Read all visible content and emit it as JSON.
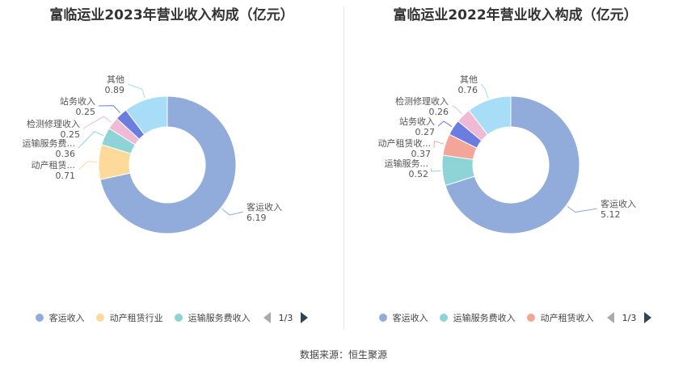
{
  "chart_data": [
    {
      "type": "pie",
      "title": "富临运业2023年营业收入构成（亿元）",
      "slices": [
        {
          "name": "客运收入",
          "label": "客运收入",
          "value": 6.19,
          "color": "#91acdb"
        },
        {
          "name": "动产租赁行业",
          "label": "动产租赁...",
          "value": 0.71,
          "color": "#fdd99a"
        },
        {
          "name": "运输服务费收入",
          "label": "运输服务费...",
          "value": 0.36,
          "color": "#8ed3d6"
        },
        {
          "name": "检测修理收入",
          "label": "检测修理收入",
          "value": 0.25,
          "color": "#f0b9d6"
        },
        {
          "name": "站务收入",
          "label": "站务收入",
          "value": 0.25,
          "color": "#6b7ee0"
        },
        {
          "name": "其他",
          "label": "其他",
          "value": 0.89,
          "color": "#a8ddf8"
        }
      ],
      "legend": {
        "items": [
          {
            "name": "客运收入",
            "color": "#91acdb"
          },
          {
            "name": "动产租赁行业",
            "color": "#fdd99a"
          },
          {
            "name": "运输服务费收入",
            "color": "#8ed3d6"
          }
        ],
        "page": "1/3"
      }
    },
    {
      "type": "pie",
      "title": "富临运业2022年营业收入构成（亿元）",
      "slices": [
        {
          "name": "客运收入",
          "label": "客运收入",
          "value": 5.12,
          "color": "#91acdb"
        },
        {
          "name": "运输服务费收入",
          "label": "运输服务...",
          "value": 0.52,
          "color": "#8ed3d6"
        },
        {
          "name": "动产租赁收入",
          "label": "动产租赁收...",
          "value": 0.37,
          "color": "#f4a59a"
        },
        {
          "name": "站务收入",
          "label": "站务收入",
          "value": 0.27,
          "color": "#6b7ee0"
        },
        {
          "name": "检测修理收入",
          "label": "检测修理收入",
          "value": 0.26,
          "color": "#f0b9d6"
        },
        {
          "name": "其他",
          "label": "其他",
          "value": 0.76,
          "color": "#a8ddf8"
        }
      ],
      "legend": {
        "items": [
          {
            "name": "客运收入",
            "color": "#91acdb"
          },
          {
            "name": "运输服务费收入",
            "color": "#8ed3d6"
          },
          {
            "name": "动产租赁收入",
            "color": "#f4a59a"
          }
        ],
        "page": "1/3"
      }
    }
  ],
  "source": "数据来源：恒生聚源"
}
